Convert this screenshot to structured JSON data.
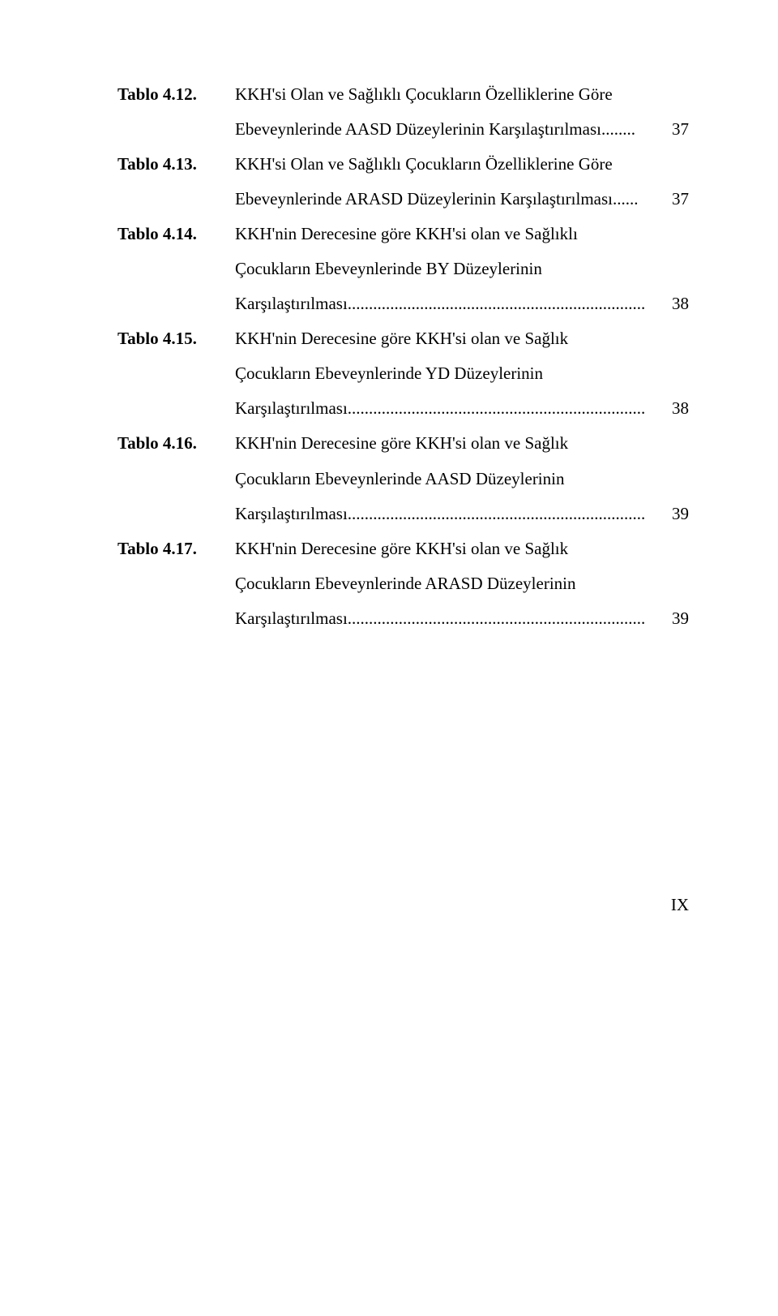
{
  "entries": [
    {
      "label": "Tablo 4.12.",
      "lines": [
        {
          "text": "KKH'si Olan ve Sağlıklı Çocukların Özelliklerine Göre",
          "page": ""
        },
        {
          "text": "Ebeveynlerinde AASD Düzeylerinin Karşılaştırılması........",
          "page": "37"
        }
      ]
    },
    {
      "label": "Tablo 4.13.",
      "lines": [
        {
          "text": "KKH'si Olan ve Sağlıklı Çocukların Özelliklerine Göre",
          "page": ""
        },
        {
          "text": "Ebeveynlerinde ARASD Düzeylerinin Karşılaştırılması......",
          "page": "37"
        }
      ]
    },
    {
      "label": "Tablo 4.14.",
      "lines": [
        {
          "text": "KKH'nin   Derecesine   göre   KKH'si   olan   ve   Sağlıklı",
          "page": ""
        },
        {
          "text": "Çocukların     Ebeveynlerinde     BY     Düzeylerinin",
          "page": ""
        },
        {
          "text": "Karşılaştırılması......................................................................",
          "page": "38"
        }
      ]
    },
    {
      "label": "Tablo 4.15.",
      "lines": [
        {
          "text": "KKH'nin   Derecesine   göre   KKH'si   olan   ve   Sağlık",
          "page": ""
        },
        {
          "text": "Çocukların     Ebeveynlerinde     YD     Düzeylerinin",
          "page": ""
        },
        {
          "text": "Karşılaştırılması......................................................................",
          "page": "38"
        }
      ]
    },
    {
      "label": "Tablo 4.16.",
      "lines": [
        {
          "text": "KKH'nin   Derecesine   göre   KKH'si   olan   ve   Sağlık",
          "page": ""
        },
        {
          "text": "Çocukların    Ebeveynlerinde    AASD    Düzeylerinin",
          "page": ""
        },
        {
          "text": "Karşılaştırılması......................................................................",
          "page": "39"
        }
      ]
    },
    {
      "label": "Tablo 4.17.",
      "lines": [
        {
          "text": "KKH'nin   Derecesine   göre   KKH'si   olan   ve   Sağlık",
          "page": ""
        },
        {
          "text": "Çocukların   Ebeveynlerinde   ARASD   Düzeylerinin",
          "page": ""
        },
        {
          "text": "Karşılaştırılması......................................................................",
          "page": "39"
        }
      ]
    }
  ],
  "pageRoman": "IX"
}
